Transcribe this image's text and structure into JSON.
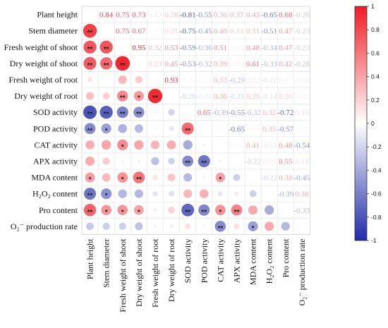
{
  "chart_data": {
    "type": "heatmap",
    "title": "",
    "variables": [
      "Plant height",
      "Stem diameter",
      "Fresh weight of shoot",
      "Dry weight of shoot",
      "Fresh weight of root",
      "Dry weight of root",
      "SOD activity",
      "POD activity",
      "CAT activity",
      "APX activity",
      "MDA content",
      "H₂O₂ content",
      "Pro  content",
      "O₂⁻ production rate"
    ],
    "matrix": [
      [
        1.0,
        0.84,
        0.75,
        0.73,
        0.12,
        0.28,
        -0.81,
        -0.55,
        0.36,
        0.37,
        0.43,
        -0.65,
        0.68,
        -0.26
      ],
      [
        0.84,
        1.0,
        0.75,
        0.67,
        0.03,
        0.21,
        -0.75,
        -0.45,
        0.4,
        0.23,
        0.31,
        -0.51,
        0.47,
        -0.23
      ],
      [
        0.75,
        0.75,
        1.0,
        0.95,
        0.32,
        0.53,
        -0.59,
        -0.36,
        0.51,
        0.05,
        0.48,
        -0.34,
        0.47,
        -0.23
      ],
      [
        0.73,
        0.67,
        0.95,
        1.0,
        0.23,
        0.45,
        -0.53,
        -0.32,
        0.39,
        0.06,
        0.61,
        -0.33,
        0.42,
        -0.28
      ],
      [
        0.12,
        0.03,
        0.32,
        0.23,
        1.0,
        0.93,
        -0.04,
        0.04,
        0.33,
        -0.29,
        0.12,
        -0.12,
        0.07,
        -0.06
      ],
      [
        0.28,
        0.21,
        0.53,
        0.45,
        0.93,
        1.0,
        -0.2,
        -0.11,
        0.36,
        -0.21,
        0.26,
        -0.14,
        0.2,
        -0.07
      ],
      [
        -0.81,
        -0.75,
        -0.59,
        -0.53,
        -0.04,
        -0.2,
        1.0,
        0.65,
        -0.39,
        -0.55,
        -0.32,
        0.32,
        -0.72,
        0.14
      ],
      [
        -0.55,
        -0.45,
        -0.36,
        -0.32,
        0.04,
        -0.11,
        0.65,
        1.0,
        -0.05,
        -0.65,
        0.06,
        0.35,
        -0.57,
        0.05
      ],
      [
        0.36,
        0.4,
        0.51,
        0.39,
        0.33,
        0.36,
        -0.39,
        -0.05,
        1.0,
        0.05,
        0.41,
        -0.11,
        0.48,
        -0.54
      ],
      [
        0.37,
        0.23,
        0.05,
        0.06,
        -0.29,
        -0.21,
        -0.55,
        -0.65,
        0.05,
        1.0,
        -0.22,
        0.09,
        0.55,
        0.14
      ],
      [
        0.43,
        0.31,
        0.48,
        0.61,
        0.12,
        0.26,
        -0.32,
        0.06,
        0.41,
        -0.22,
        1.0,
        -0.22,
        0.38,
        -0.45
      ],
      [
        -0.65,
        -0.51,
        -0.34,
        -0.33,
        -0.12,
        -0.14,
        0.32,
        0.35,
        -0.11,
        0.09,
        -0.22,
        1.0,
        -0.39,
        0.38
      ],
      [
        0.68,
        0.47,
        0.47,
        0.42,
        0.07,
        0.2,
        -0.72,
        -0.57,
        0.48,
        0.55,
        0.38,
        -0.39,
        1.0,
        -0.33
      ],
      [
        -0.26,
        -0.23,
        -0.23,
        -0.28,
        -0.06,
        -0.07,
        0.14,
        0.05,
        -0.54,
        0.14,
        -0.45,
        0.38,
        -0.33,
        1.0
      ]
    ],
    "significance_lower": [
      [
        "",
        "",
        "",
        "",
        "",
        "",
        "",
        "",
        "",
        "",
        "",
        "",
        "",
        ""
      ],
      [
        "**",
        "",
        "",
        "",
        "",
        "",
        "",
        "",
        "",
        "",
        "",
        "",
        "",
        ""
      ],
      [
        "**",
        "**",
        "",
        "",
        "",
        "",
        "",
        "",
        "",
        "",
        "",
        "",
        "",
        ""
      ],
      [
        "**",
        "**",
        "**",
        "",
        "",
        "",
        "",
        "",
        "",
        "",
        "",
        "",
        "",
        ""
      ],
      [
        "",
        "",
        "",
        "",
        "",
        "",
        "",
        "",
        "",
        "",
        "",
        "",
        "",
        ""
      ],
      [
        "",
        "",
        "**",
        "*",
        "**",
        "",
        "",
        "",
        "",
        "",
        "",
        "",
        "",
        ""
      ],
      [
        "**",
        "**",
        "**",
        "**",
        "",
        "",
        "",
        "",
        "",
        "",
        "",
        "",
        "",
        ""
      ],
      [
        "**",
        "*",
        "",
        "",
        "",
        "",
        "**",
        "",
        "",
        "",
        "",
        "",
        "",
        ""
      ],
      [
        "",
        "",
        "*",
        "",
        "",
        "",
        "",
        "",
        "",
        "",
        "",
        "",
        "",
        ""
      ],
      [
        "",
        "",
        "",
        "",
        "",
        "",
        "**",
        "**",
        "",
        "",
        "",
        "",
        "",
        ""
      ],
      [
        "*",
        "",
        "*",
        "**",
        "",
        "",
        "",
        "",
        "*",
        "",
        "",
        "",
        "",
        ""
      ],
      [
        "**",
        "*",
        "",
        "",
        "",
        "",
        "",
        "",
        "",
        "",
        "",
        "",
        "",
        ""
      ],
      [
        "**",
        "*",
        "*",
        "*",
        "",
        "",
        "**",
        "**",
        "*",
        "**",
        "",
        "",
        "",
        ""
      ],
      [
        "",
        "",
        "",
        "",
        "",
        "",
        "",
        "",
        "**",
        "",
        "*",
        "",
        "",
        ""
      ]
    ],
    "colorbar": {
      "min": -1,
      "max": 1,
      "ticks": [
        "1",
        "0.8",
        "0.6",
        "0.4",
        "0.2",
        "0",
        "-0.2",
        "-0.4",
        "-0.6",
        "-0.8",
        "-1"
      ]
    },
    "colors": {
      "positive": "#ee1c25",
      "negative": "#1f2aa6",
      "neutral": "#ffffff"
    }
  }
}
